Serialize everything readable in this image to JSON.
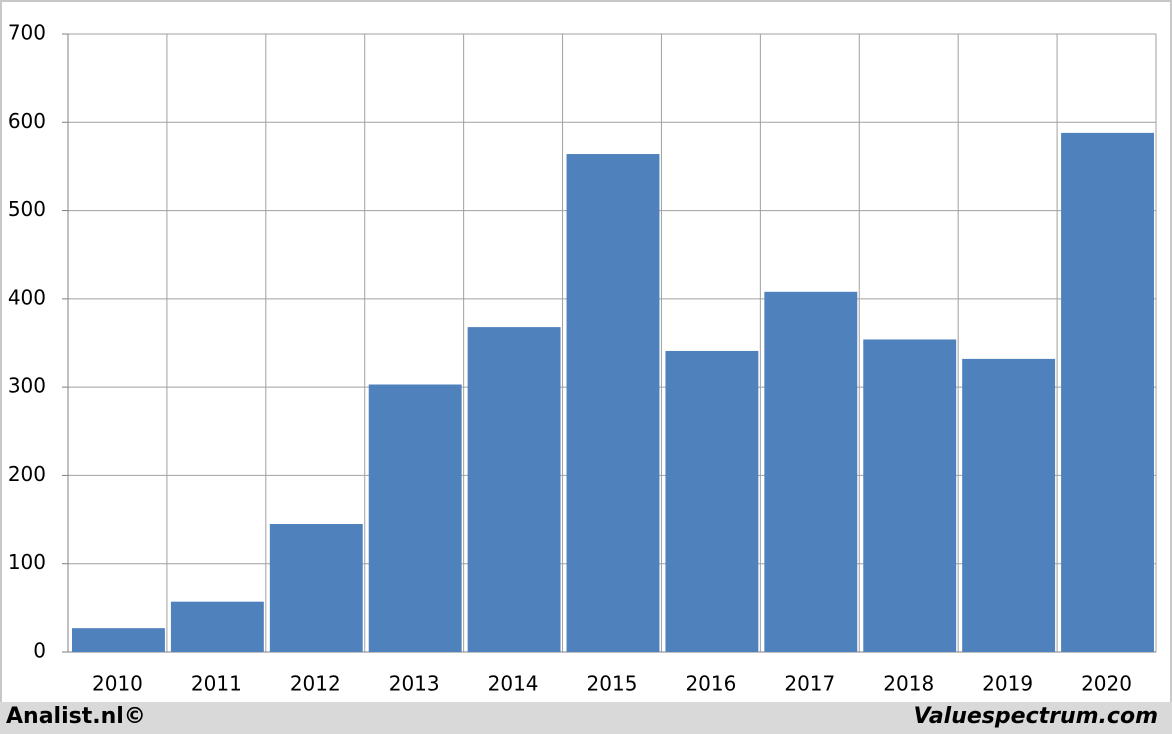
{
  "chart_data": {
    "type": "bar",
    "categories": [
      "2010",
      "2011",
      "2012",
      "2013",
      "2014",
      "2015",
      "2016",
      "2017",
      "2018",
      "2019",
      "2020"
    ],
    "values": [
      27,
      57,
      145,
      303,
      368,
      564,
      341,
      408,
      354,
      332,
      588
    ],
    "color": "#4f81bd",
    "ylim": [
      0,
      700
    ],
    "yticks": [
      0,
      100,
      200,
      300,
      400,
      500,
      600,
      700
    ],
    "grid": true
  },
  "footer": {
    "left": "Analist.nl©",
    "right": "Valuespectrum.com"
  }
}
